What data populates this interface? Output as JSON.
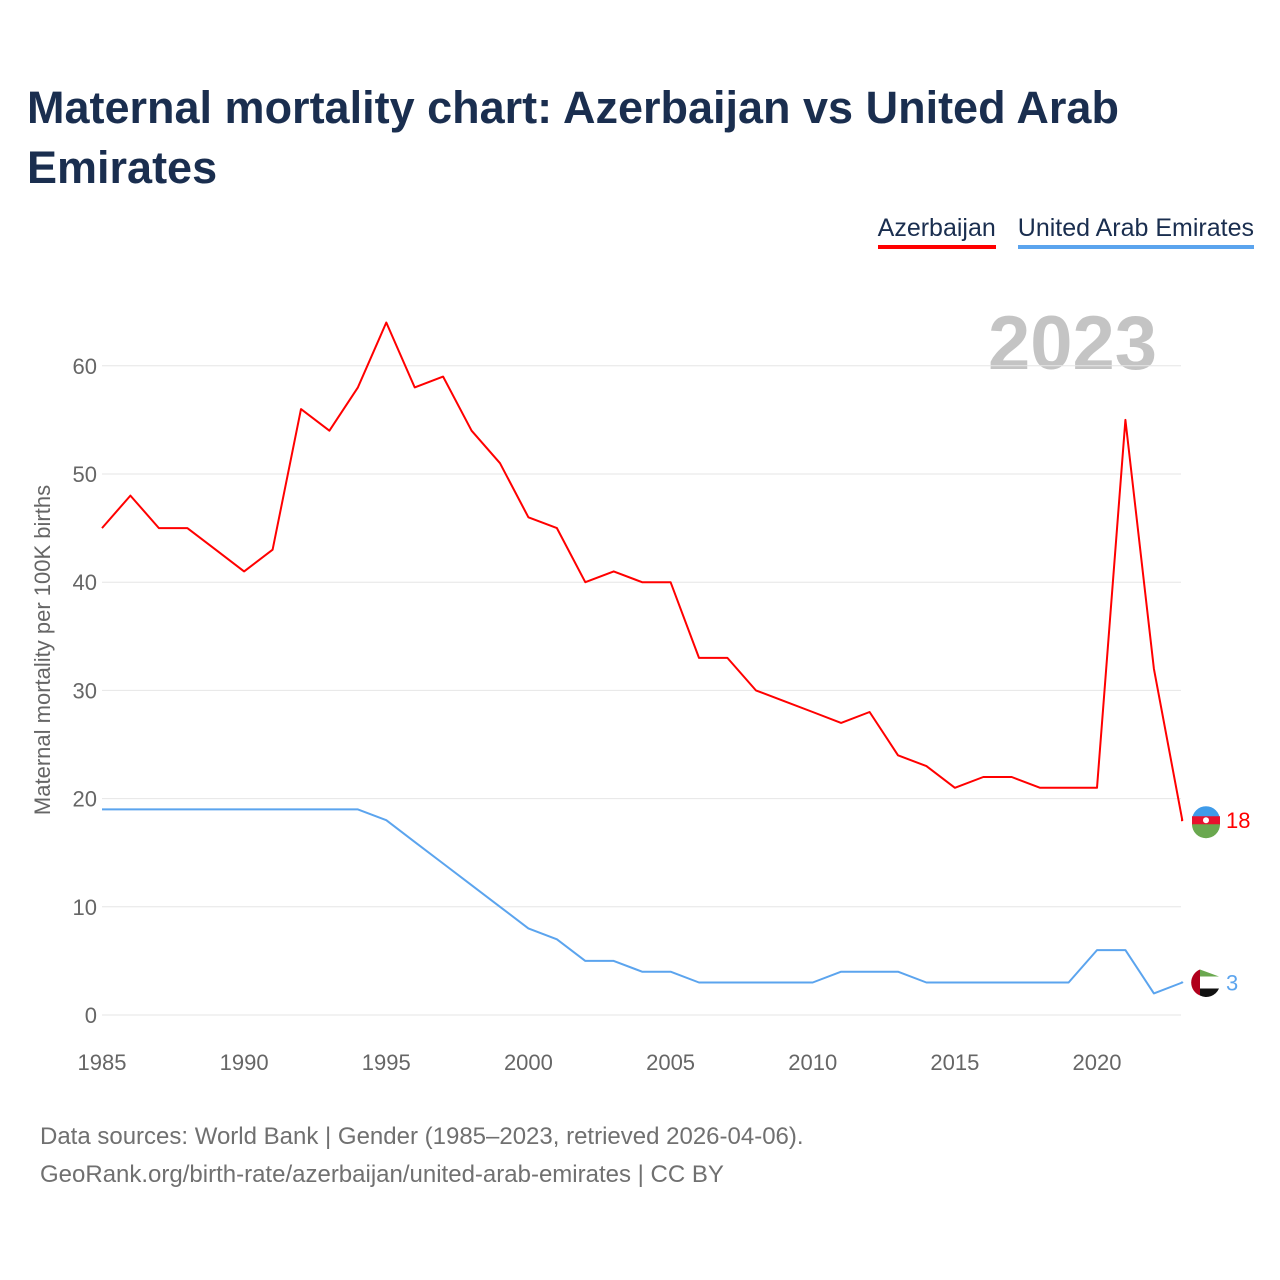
{
  "title": "Maternal mortality chart: Azerbaijan vs United Arab Emirates",
  "year_label": "2023",
  "source_lines": [
    "Data sources: World Bank | Gender (1985–2023, retrieved 2026-04-06).",
    "GeoRank.org/birth-rate/azerbaijan/united-arab-emirates | CC BY"
  ],
  "chart_data": {
    "type": "line",
    "title": "Maternal mortality chart: Azerbaijan vs United Arab Emirates",
    "xlabel": "",
    "ylabel": "Maternal mortality per 100K births",
    "xlim": [
      1985,
      2023
    ],
    "ylim": [
      0,
      65
    ],
    "x_ticks": [
      "1985",
      "1990",
      "1995",
      "2000",
      "2005",
      "2010",
      "2015",
      "2020"
    ],
    "y_ticks": [
      "0",
      "10",
      "20",
      "30",
      "40",
      "50",
      "60"
    ],
    "grid": true,
    "legend_position": "top-right",
    "x": [
      1985,
      1986,
      1987,
      1988,
      1989,
      1990,
      1991,
      1992,
      1993,
      1994,
      1995,
      1996,
      1997,
      1998,
      1999,
      2000,
      2001,
      2002,
      2003,
      2004,
      2005,
      2006,
      2007,
      2008,
      2009,
      2010,
      2011,
      2012,
      2013,
      2014,
      2015,
      2016,
      2017,
      2018,
      2019,
      2020,
      2021,
      2022,
      2023
    ],
    "series": [
      {
        "name": "Azerbaijan",
        "color": "#ff0000",
        "end_label": "18",
        "values": [
          45,
          48,
          45,
          45,
          43,
          41,
          43,
          56,
          54,
          58,
          64,
          58,
          59,
          54,
          51,
          46,
          45,
          40,
          41,
          40,
          40,
          33,
          33,
          30,
          29,
          28,
          27,
          28,
          24,
          23,
          21,
          22,
          22,
          21,
          21,
          21,
          55,
          32,
          18
        ]
      },
      {
        "name": "United Arab Emirates",
        "color": "#5ba4ee",
        "end_label": "3",
        "values": [
          19,
          19,
          19,
          19,
          19,
          19,
          19,
          19,
          19,
          19,
          18,
          16,
          14,
          12,
          10,
          8,
          7,
          5,
          5,
          4,
          4,
          3,
          3,
          3,
          3,
          3,
          4,
          4,
          4,
          3,
          3,
          3,
          3,
          3,
          3,
          6,
          6,
          2,
          3
        ]
      }
    ]
  }
}
